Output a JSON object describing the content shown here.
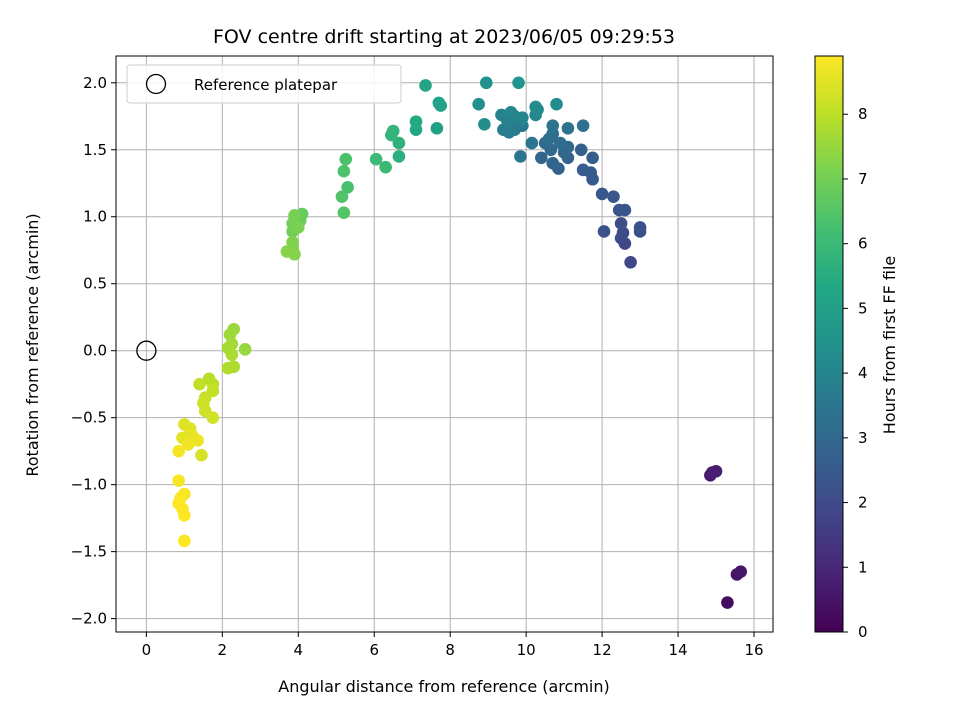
{
  "chart_data": {
    "type": "scatter",
    "title": "FOV centre drift starting at 2023/06/05 09:29:53",
    "xlabel": "Angular distance from reference (arcmin)",
    "ylabel": "Rotation from reference (arcmin)",
    "xlim": [
      -0.8,
      16.5
    ],
    "ylim": [
      -2.1,
      2.2
    ],
    "xticks": [
      0,
      2,
      4,
      6,
      8,
      10,
      12,
      14,
      16
    ],
    "xtick_labels": [
      "0",
      "2",
      "4",
      "6",
      "8",
      "10",
      "12",
      "14",
      "16"
    ],
    "yticks": [
      -2.0,
      -1.5,
      -1.0,
      -0.5,
      0.0,
      0.5,
      1.0,
      1.5,
      2.0
    ],
    "ytick_labels": [
      "−2.0",
      "−1.5",
      "−1.0",
      "−0.5",
      "0.0",
      "0.5",
      "1.0",
      "1.5",
      "2.0"
    ],
    "grid": true,
    "legend": {
      "placement": "top-left",
      "label": "Reference platepar",
      "marker": "open-circle"
    },
    "reference_point": {
      "x": 0.0,
      "y": 0.0
    },
    "colorbar": {
      "label": "Hours from first FF file",
      "range": [
        0,
        8.9
      ],
      "ticks": [
        0,
        1,
        2,
        3,
        4,
        5,
        6,
        7,
        8
      ],
      "tick_labels": [
        "0",
        "1",
        "2",
        "3",
        "4",
        "5",
        "6",
        "7",
        "8"
      ],
      "colormap": "viridis"
    },
    "series": [
      {
        "points": [
          [
            15.3,
            -1.88,
            0.3
          ],
          [
            15.55,
            -1.67,
            0.5
          ],
          [
            15.65,
            -1.65,
            0.55
          ],
          [
            14.85,
            -0.93,
            0.65
          ],
          [
            15.0,
            -0.9,
            0.7
          ],
          [
            14.9,
            -0.91,
            0.75
          ],
          [
            12.75,
            0.66,
            1.9
          ],
          [
            12.6,
            0.8,
            1.95
          ],
          [
            12.5,
            0.84,
            2.0
          ],
          [
            12.55,
            0.88,
            2.05
          ],
          [
            12.5,
            0.95,
            2.1
          ],
          [
            13.0,
            0.89,
            2.15
          ],
          [
            13.0,
            0.92,
            2.2
          ],
          [
            12.05,
            0.89,
            2.25
          ],
          [
            12.45,
            1.05,
            2.3
          ],
          [
            12.6,
            1.05,
            2.35
          ],
          [
            12.3,
            1.15,
            2.4
          ],
          [
            12.0,
            1.17,
            2.45
          ],
          [
            11.75,
            1.28,
            2.5
          ],
          [
            11.7,
            1.33,
            2.55
          ],
          [
            11.5,
            1.35,
            2.6
          ],
          [
            11.75,
            1.44,
            2.65
          ],
          [
            11.45,
            1.5,
            2.7
          ],
          [
            11.1,
            1.44,
            2.75
          ],
          [
            10.85,
            1.36,
            2.8
          ],
          [
            10.7,
            1.4,
            2.85
          ],
          [
            10.4,
            1.44,
            2.9
          ],
          [
            11.0,
            1.48,
            2.95
          ],
          [
            11.1,
            1.52,
            3.0
          ],
          [
            10.65,
            1.5,
            3.05
          ],
          [
            10.5,
            1.55,
            3.1
          ],
          [
            10.9,
            1.55,
            3.15
          ],
          [
            10.6,
            1.58,
            3.2
          ],
          [
            10.7,
            1.62,
            3.25
          ],
          [
            11.5,
            1.68,
            3.3
          ],
          [
            11.1,
            1.66,
            3.35
          ],
          [
            10.7,
            1.68,
            3.4
          ],
          [
            10.15,
            1.55,
            3.45
          ],
          [
            9.85,
            1.45,
            3.5
          ],
          [
            9.9,
            1.68,
            3.55
          ],
          [
            9.7,
            1.65,
            3.6
          ],
          [
            9.55,
            1.63,
            3.65
          ],
          [
            9.4,
            1.65,
            3.7
          ],
          [
            9.6,
            1.7,
            3.75
          ],
          [
            9.85,
            1.72,
            3.8
          ],
          [
            9.5,
            1.72,
            3.85
          ],
          [
            9.35,
            1.76,
            3.9
          ],
          [
            9.7,
            1.75,
            3.95
          ],
          [
            9.9,
            1.74,
            4.0
          ],
          [
            9.6,
            1.78,
            4.05
          ],
          [
            10.25,
            1.76,
            4.1
          ],
          [
            10.3,
            1.8,
            4.15
          ],
          [
            10.25,
            1.82,
            4.2
          ],
          [
            10.8,
            1.84,
            4.25
          ],
          [
            8.9,
            1.69,
            4.3
          ],
          [
            8.75,
            1.84,
            4.4
          ],
          [
            8.95,
            2.0,
            4.5
          ],
          [
            9.8,
            2.0,
            4.6
          ],
          [
            7.65,
            1.66,
            5.0
          ],
          [
            7.75,
            1.83,
            5.05
          ],
          [
            7.7,
            1.85,
            5.1
          ],
          [
            7.35,
            1.98,
            5.2
          ],
          [
            7.1,
            1.65,
            5.3
          ],
          [
            7.1,
            1.71,
            5.4
          ],
          [
            6.65,
            1.45,
            5.6
          ],
          [
            6.65,
            1.55,
            5.7
          ],
          [
            6.5,
            1.64,
            5.8
          ],
          [
            6.45,
            1.61,
            5.85
          ],
          [
            6.3,
            1.37,
            5.95
          ],
          [
            6.05,
            1.43,
            6.0
          ],
          [
            5.3,
            1.22,
            6.3
          ],
          [
            5.25,
            1.43,
            6.35
          ],
          [
            5.2,
            1.34,
            6.4
          ],
          [
            5.15,
            1.15,
            6.45
          ],
          [
            5.2,
            1.03,
            6.5
          ],
          [
            4.1,
            1.02,
            6.8
          ],
          [
            4.05,
            0.97,
            6.85
          ],
          [
            3.9,
            0.98,
            6.9
          ],
          [
            3.85,
            0.89,
            6.95
          ],
          [
            3.85,
            0.95,
            7.0
          ],
          [
            3.9,
            1.01,
            7.05
          ],
          [
            4.0,
            0.92,
            7.1
          ],
          [
            3.85,
            0.76,
            7.15
          ],
          [
            3.85,
            0.81,
            7.2
          ],
          [
            3.9,
            0.72,
            7.25
          ],
          [
            3.7,
            0.74,
            7.3
          ],
          [
            2.6,
            0.01,
            7.5
          ],
          [
            2.3,
            0.16,
            7.55
          ],
          [
            2.2,
            0.12,
            7.6
          ],
          [
            2.25,
            0.05,
            7.65
          ],
          [
            2.15,
            0.02,
            7.7
          ],
          [
            2.25,
            -0.03,
            7.75
          ],
          [
            2.3,
            -0.12,
            7.8
          ],
          [
            2.15,
            -0.13,
            7.85
          ],
          [
            1.65,
            -0.21,
            7.95
          ],
          [
            1.75,
            -0.25,
            8.0
          ],
          [
            1.4,
            -0.25,
            8.05
          ],
          [
            1.75,
            -0.3,
            8.1
          ],
          [
            1.55,
            -0.35,
            8.15
          ],
          [
            1.5,
            -0.39,
            8.2
          ],
          [
            1.55,
            -0.45,
            8.25
          ],
          [
            1.75,
            -0.5,
            8.3
          ],
          [
            1.45,
            -0.78,
            8.35
          ],
          [
            1.0,
            -0.55,
            8.45
          ],
          [
            1.15,
            -0.58,
            8.5
          ],
          [
            0.95,
            -0.65,
            8.55
          ],
          [
            1.2,
            -0.63,
            8.6
          ],
          [
            1.35,
            -0.67,
            8.65
          ],
          [
            1.1,
            -0.7,
            8.7
          ],
          [
            0.85,
            -0.75,
            8.75
          ],
          [
            0.85,
            -0.97,
            8.8
          ],
          [
            1.0,
            -1.07,
            8.83
          ],
          [
            0.9,
            -1.1,
            8.85
          ],
          [
            0.85,
            -1.14,
            8.87
          ],
          [
            0.95,
            -1.18,
            8.9
          ],
          [
            1.0,
            -1.23,
            8.92
          ],
          [
            1.0,
            -1.42,
            8.95
          ]
        ]
      }
    ]
  }
}
